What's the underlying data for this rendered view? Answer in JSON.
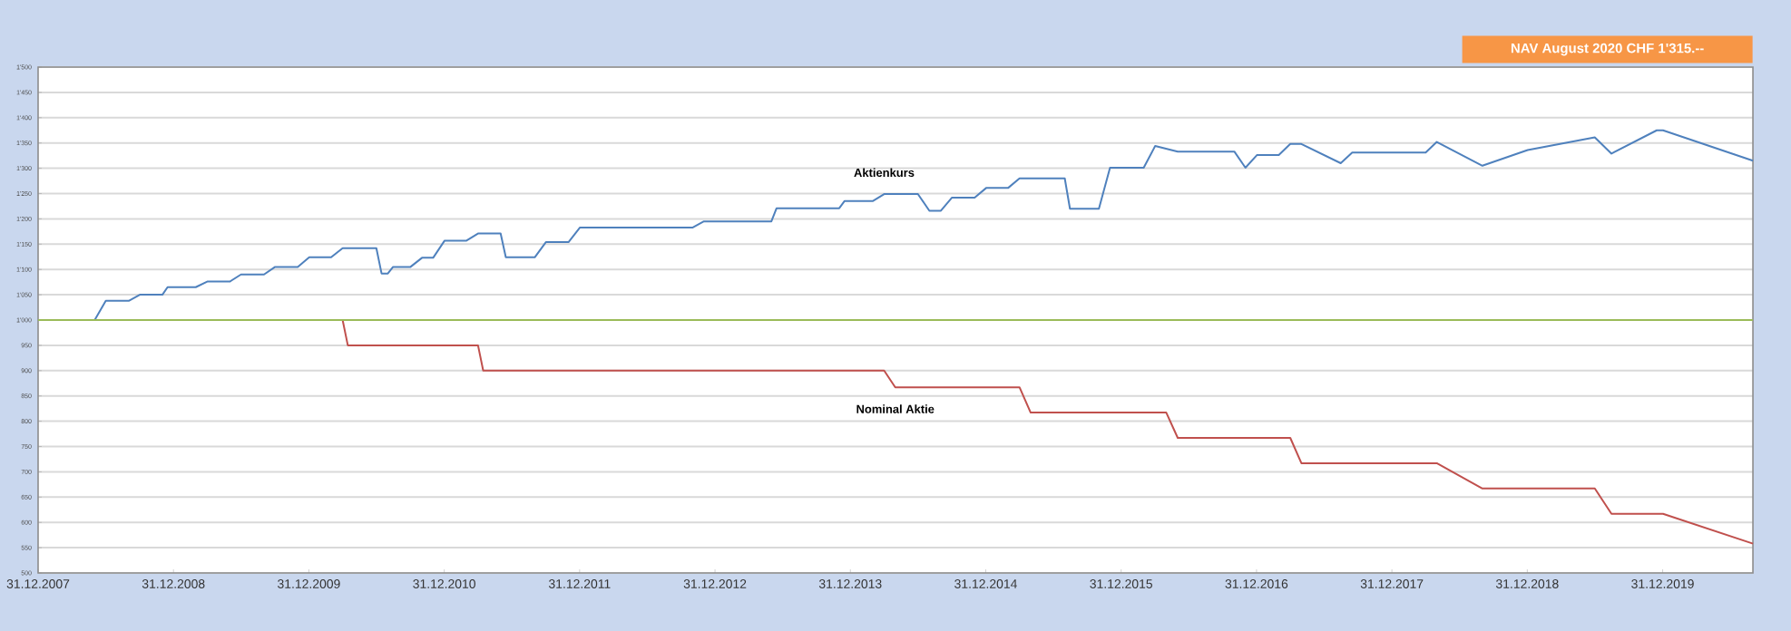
{
  "chart_data": {
    "type": "line",
    "title": "NAV August 2020 CHF 1'315.--",
    "grid": "y",
    "marker": "none",
    "line_style": "solid",
    "xlim": [
      "2007-12-31",
      "2020-08-31"
    ],
    "xticks": [
      {
        "value": "2007-12-31",
        "label": "31.12.2007"
      },
      {
        "value": "2008-12-31",
        "label": "31.12.2008"
      },
      {
        "value": "2009-12-31",
        "label": "31.12.2009"
      },
      {
        "value": "2010-12-31",
        "label": "31.12.2010"
      },
      {
        "value": "2011-12-31",
        "label": "31.12.2011"
      },
      {
        "value": "2012-12-31",
        "label": "31.12.2012"
      },
      {
        "value": "2013-12-31",
        "label": "31.12.2013"
      },
      {
        "value": "2014-12-31",
        "label": "31.12.2014"
      },
      {
        "value": "2015-12-31",
        "label": "31.12.2015"
      },
      {
        "value": "2016-12-31",
        "label": "31.12.2016"
      },
      {
        "value": "2017-12-31",
        "label": "31.12.2017"
      },
      {
        "value": "2018-12-31",
        "label": "31.12.2018"
      },
      {
        "value": "2019-12-31",
        "label": "31.12.2019"
      }
    ],
    "ylim": [
      500,
      1500
    ],
    "yticks": [
      500,
      550,
      600,
      650,
      700,
      750,
      800,
      850,
      900,
      950,
      {
        "value": 1000,
        "label": "1'000"
      },
      {
        "value": 1050,
        "label": "1'050"
      },
      {
        "value": 1100,
        "label": "1'100"
      },
      {
        "value": 1150,
        "label": "1'150"
      },
      {
        "value": 1200,
        "label": "1'200"
      },
      {
        "value": 1250,
        "label": "1'250"
      },
      {
        "value": 1300,
        "label": "1'300"
      },
      {
        "value": 1350,
        "label": "1'350"
      },
      {
        "value": 1400,
        "label": "1'400"
      },
      {
        "value": 1450,
        "label": "1'450"
      },
      {
        "value": 1500,
        "label": "1'500"
      }
    ],
    "series": [
      {
        "name": "Aktienkurs",
        "color": "#4f81bd",
        "x": [
          "2007-12-31",
          "2008-06-01",
          "2008-07-01",
          "2008-09-01",
          "2008-10-01",
          "2008-12-01",
          "2008-12-15",
          "2009-03-01",
          "2009-04-01",
          "2009-06-01",
          "2009-07-01",
          "2009-09-01",
          "2009-10-01",
          "2009-12-01",
          "2010-01-01",
          "2010-03-01",
          "2010-04-01",
          "2010-07-01",
          "2010-07-15",
          "2010-08-01",
          "2010-08-15",
          "2010-10-01",
          "2010-11-01",
          "2010-12-01",
          "2011-01-01",
          "2011-03-01",
          "2011-04-01",
          "2011-06-01",
          "2011-06-15",
          "2011-09-01",
          "2011-10-01",
          "2011-12-01",
          "2012-01-01",
          "2012-11-01",
          "2012-12-01",
          "2013-06-01",
          "2013-06-15",
          "2013-12-01",
          "2013-12-15",
          "2014-03-01",
          "2014-04-01",
          "2014-07-01",
          "2014-08-01",
          "2014-09-01",
          "2014-10-01",
          "2014-12-01",
          "2015-01-01",
          "2015-03-01",
          "2015-04-01",
          "2015-08-01",
          "2015-08-15",
          "2015-11-01",
          "2015-12-01",
          "2016-03-01",
          "2016-04-01",
          "2016-06-01",
          "2016-11-01",
          "2016-12-01",
          "2017-01-01",
          "2017-03-01",
          "2017-04-01",
          "2017-05-01",
          "2017-08-15",
          "2017-09-15",
          "2018-04-01",
          "2018-05-01",
          "2018-09-01",
          "2019-01-01",
          "2019-07-01",
          "2019-08-15",
          "2019-12-15",
          "2020-01-01",
          "2020-08-31"
        ],
        "values": [
          1000,
          1000,
          1038,
          1038,
          1050,
          1050,
          1065,
          1065,
          1076,
          1076,
          1090,
          1090,
          1105,
          1105,
          1124,
          1124,
          1142,
          1142,
          1092,
          1092,
          1105,
          1105,
          1123,
          1123,
          1157,
          1157,
          1171,
          1171,
          1124,
          1124,
          1154,
          1154,
          1183,
          1183,
          1195,
          1195,
          1221,
          1221,
          1235,
          1235,
          1249,
          1249,
          1216,
          1216,
          1242,
          1242,
          1261,
          1261,
          1280,
          1280,
          1220,
          1220,
          1301,
          1301,
          1344,
          1333,
          1333,
          1301,
          1326,
          1326,
          1348,
          1348,
          1310,
          1331,
          1331,
          1352,
          1305,
          1336,
          1361,
          1329,
          1375,
          1375,
          1315
        ]
      },
      {
        "name": "Nominal Aktie",
        "color": "#c0504d",
        "x": [
          "2007-12-31",
          "2010-04-01",
          "2010-04-15",
          "2011-04-01",
          "2011-04-15",
          "2014-04-01",
          "2014-05-01",
          "2015-04-01",
          "2015-05-01",
          "2016-05-01",
          "2016-06-01",
          "2017-04-01",
          "2017-05-01",
          "2018-05-01",
          "2018-09-01",
          "2019-07-01",
          "2019-08-15",
          "2020-01-01",
          "2020-08-31"
        ],
        "values": [
          1000,
          1000,
          950,
          950,
          900,
          900,
          867,
          867,
          817,
          817,
          767,
          767,
          717,
          717,
          667,
          667,
          617,
          617,
          558
        ]
      },
      {
        "color": "#9bbb59",
        "x": [
          "2007-12-31",
          "2020-08-31"
        ],
        "values": [
          1000,
          1000
        ]
      }
    ]
  }
}
